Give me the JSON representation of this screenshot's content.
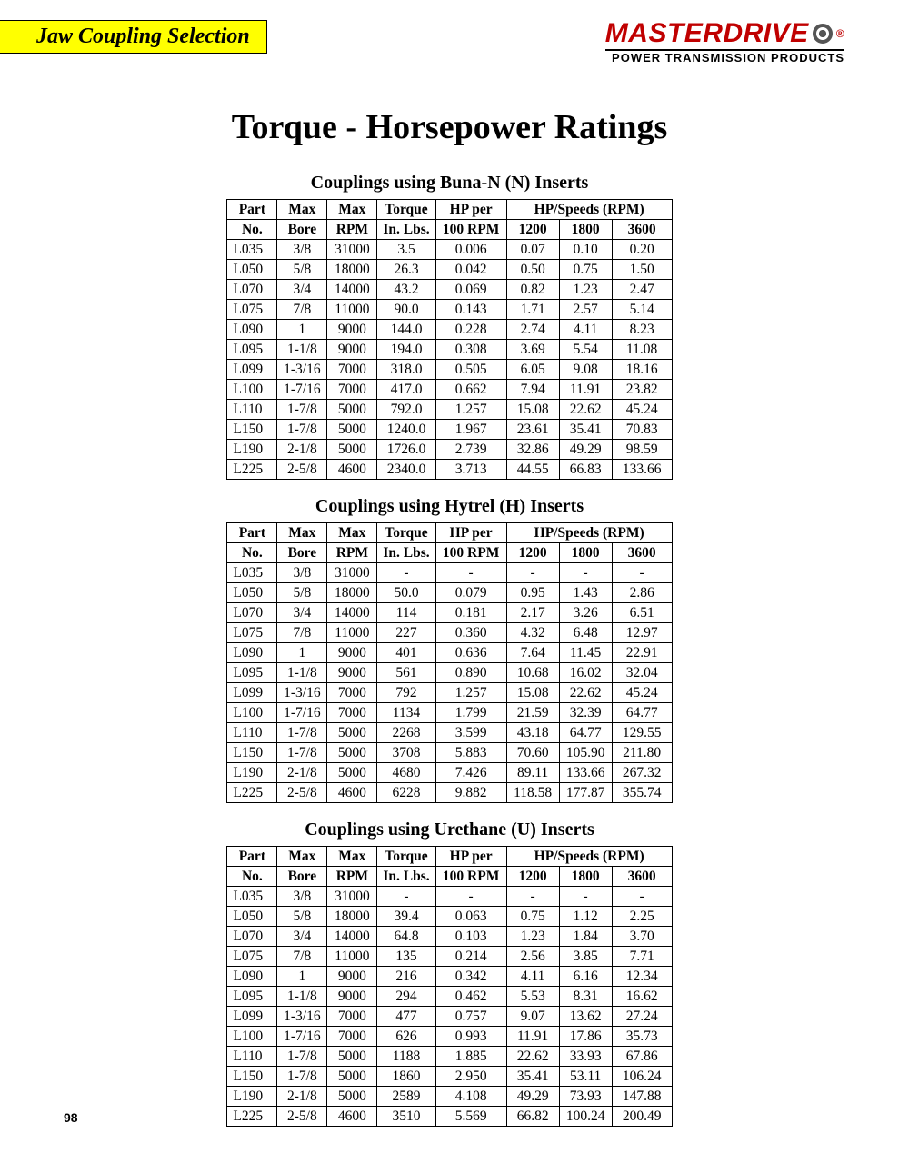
{
  "header": {
    "section_title": "Jaw Coupling Selection",
    "brand_name": "MASTERDRIVE",
    "brand_subtitle": "POWER TRANSMISSION PRODUCTS"
  },
  "main_title": "Torque - Horsepower Ratings",
  "page_number": "98",
  "column_headers": {
    "part_top": "Part",
    "part_bot": "No.",
    "bore_top": "Max",
    "bore_bot": "Bore",
    "rpm_top": "Max",
    "rpm_bot": "RPM",
    "tq_top": "Torque",
    "tq_bot": "In. Lbs.",
    "hpp_top": "HP per",
    "hpp_bot": "100 RPM",
    "speeds_top": "HP/Speeds (RPM)",
    "sp_1200": "1200",
    "sp_1800": "1800",
    "sp_3600": "3600"
  },
  "tables": [
    {
      "title": "Couplings using Buna-N (N) Inserts",
      "rows": [
        [
          "L035",
          "3/8",
          "31000",
          "3.5",
          "0.006",
          "0.07",
          "0.10",
          "0.20"
        ],
        [
          "L050",
          "5/8",
          "18000",
          "26.3",
          "0.042",
          "0.50",
          "0.75",
          "1.50"
        ],
        [
          "L070",
          "3/4",
          "14000",
          "43.2",
          "0.069",
          "0.82",
          "1.23",
          "2.47"
        ],
        [
          "L075",
          "7/8",
          "11000",
          "90.0",
          "0.143",
          "1.71",
          "2.57",
          "5.14"
        ],
        [
          "L090",
          "1",
          "9000",
          "144.0",
          "0.228",
          "2.74",
          "4.11",
          "8.23"
        ],
        [
          "L095",
          "1-1/8",
          "9000",
          "194.0",
          "0.308",
          "3.69",
          "5.54",
          "11.08"
        ],
        [
          "L099",
          "1-3/16",
          "7000",
          "318.0",
          "0.505",
          "6.05",
          "9.08",
          "18.16"
        ],
        [
          "L100",
          "1-7/16",
          "7000",
          "417.0",
          "0.662",
          "7.94",
          "11.91",
          "23.82"
        ],
        [
          "L110",
          "1-7/8",
          "5000",
          "792.0",
          "1.257",
          "15.08",
          "22.62",
          "45.24"
        ],
        [
          "L150",
          "1-7/8",
          "5000",
          "1240.0",
          "1.967",
          "23.61",
          "35.41",
          "70.83"
        ],
        [
          "L190",
          "2-1/8",
          "5000",
          "1726.0",
          "2.739",
          "32.86",
          "49.29",
          "98.59"
        ],
        [
          "L225",
          "2-5/8",
          "4600",
          "2340.0",
          "3.713",
          "44.55",
          "66.83",
          "133.66"
        ]
      ]
    },
    {
      "title": "Couplings using Hytrel (H) Inserts",
      "rows": [
        [
          "L035",
          "3/8",
          "31000",
          "-",
          "-",
          "-",
          "-",
          "-"
        ],
        [
          "L050",
          "5/8",
          "18000",
          "50.0",
          "0.079",
          "0.95",
          "1.43",
          "2.86"
        ],
        [
          "L070",
          "3/4",
          "14000",
          "114",
          "0.181",
          "2.17",
          "3.26",
          "6.51"
        ],
        [
          "L075",
          "7/8",
          "11000",
          "227",
          "0.360",
          "4.32",
          "6.48",
          "12.97"
        ],
        [
          "L090",
          "1",
          "9000",
          "401",
          "0.636",
          "7.64",
          "11.45",
          "22.91"
        ],
        [
          "L095",
          "1-1/8",
          "9000",
          "561",
          "0.890",
          "10.68",
          "16.02",
          "32.04"
        ],
        [
          "L099",
          "1-3/16",
          "7000",
          "792",
          "1.257",
          "15.08",
          "22.62",
          "45.24"
        ],
        [
          "L100",
          "1-7/16",
          "7000",
          "1134",
          "1.799",
          "21.59",
          "32.39",
          "64.77"
        ],
        [
          "L110",
          "1-7/8",
          "5000",
          "2268",
          "3.599",
          "43.18",
          "64.77",
          "129.55"
        ],
        [
          "L150",
          "1-7/8",
          "5000",
          "3708",
          "5.883",
          "70.60",
          "105.90",
          "211.80"
        ],
        [
          "L190",
          "2-1/8",
          "5000",
          "4680",
          "7.426",
          "89.11",
          "133.66",
          "267.32"
        ],
        [
          "L225",
          "2-5/8",
          "4600",
          "6228",
          "9.882",
          "118.58",
          "177.87",
          "355.74"
        ]
      ]
    },
    {
      "title": "Couplings using Urethane (U) Inserts",
      "rows": [
        [
          "L035",
          "3/8",
          "31000",
          "-",
          "-",
          "-",
          "-",
          "-"
        ],
        [
          "L050",
          "5/8",
          "18000",
          "39.4",
          "0.063",
          "0.75",
          "1.12",
          "2.25"
        ],
        [
          "L070",
          "3/4",
          "14000",
          "64.8",
          "0.103",
          "1.23",
          "1.84",
          "3.70"
        ],
        [
          "L075",
          "7/8",
          "11000",
          "135",
          "0.214",
          "2.56",
          "3.85",
          "7.71"
        ],
        [
          "L090",
          "1",
          "9000",
          "216",
          "0.342",
          "4.11",
          "6.16",
          "12.34"
        ],
        [
          "L095",
          "1-1/8",
          "9000",
          "294",
          "0.462",
          "5.53",
          "8.31",
          "16.62"
        ],
        [
          "L099",
          "1-3/16",
          "7000",
          "477",
          "0.757",
          "9.07",
          "13.62",
          "27.24"
        ],
        [
          "L100",
          "1-7/16",
          "7000",
          "626",
          "0.993",
          "11.91",
          "17.86",
          "35.73"
        ],
        [
          "L110",
          "1-7/8",
          "5000",
          "1188",
          "1.885",
          "22.62",
          "33.93",
          "67.86"
        ],
        [
          "L150",
          "1-7/8",
          "5000",
          "1860",
          "2.950",
          "35.41",
          "53.11",
          "106.24"
        ],
        [
          "L190",
          "2-1/8",
          "5000",
          "2589",
          "4.108",
          "49.29",
          "73.93",
          "147.88"
        ],
        [
          "L225",
          "2-5/8",
          "4600",
          "3510",
          "5.569",
          "66.82",
          "100.24",
          "200.49"
        ]
      ]
    }
  ]
}
